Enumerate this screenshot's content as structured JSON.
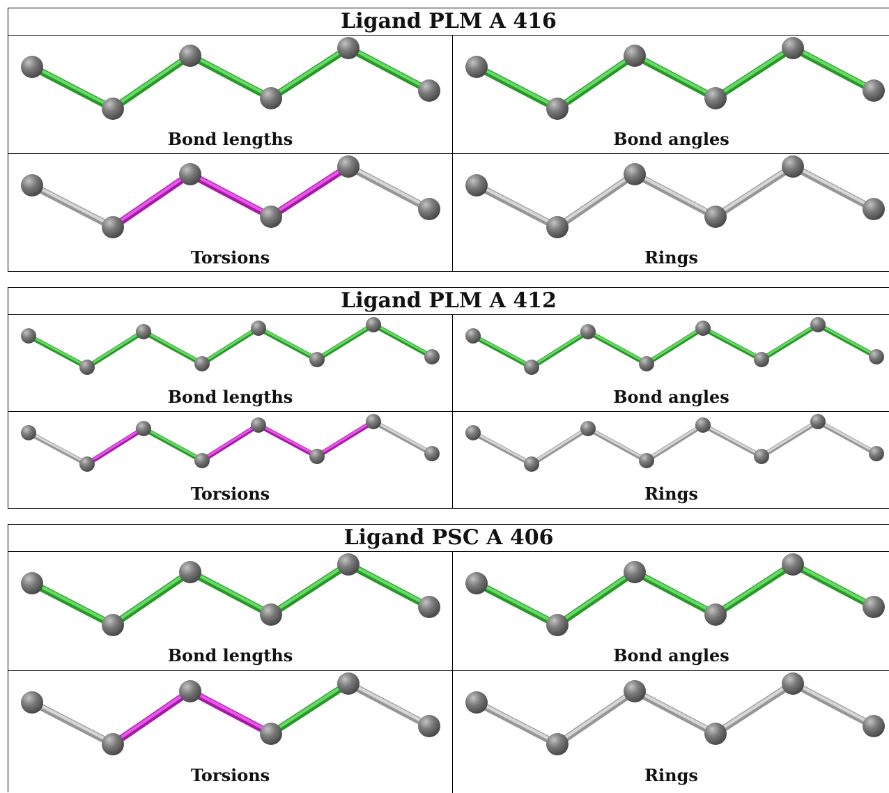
{
  "ligands": [
    {
      "title": "Ligand PLM A 416",
      "panels": [
        {
          "caption": "Bond lengths",
          "bonds": [
            "green",
            "green",
            "green",
            "green",
            "green"
          ]
        },
        {
          "caption": "Bond angles",
          "bonds": [
            "green",
            "green",
            "green",
            "green",
            "green"
          ]
        },
        {
          "caption": "Torsions",
          "bonds": [
            "grey",
            "magenta",
            "magenta",
            "magenta",
            "grey"
          ]
        },
        {
          "caption": "Rings",
          "bonds": [
            "grey",
            "grey",
            "grey",
            "grey",
            "grey"
          ]
        }
      ]
    },
    {
      "title": "Ligand PLM A 412",
      "panels": [
        {
          "caption": "Bond lengths",
          "bonds": [
            "green",
            "green",
            "green",
            "green",
            "green",
            "green",
            "green"
          ]
        },
        {
          "caption": "Bond angles",
          "bonds": [
            "green",
            "green",
            "green",
            "green",
            "green",
            "green",
            "green"
          ]
        },
        {
          "caption": "Torsions",
          "bonds": [
            "grey",
            "magenta",
            "green",
            "magenta",
            "magenta",
            "magenta",
            "grey"
          ]
        },
        {
          "caption": "Rings",
          "bonds": [
            "grey",
            "grey",
            "grey",
            "grey",
            "grey",
            "grey",
            "grey"
          ]
        }
      ]
    },
    {
      "title": "Ligand PSC A 406",
      "panels": [
        {
          "caption": "Bond lengths",
          "bonds": [
            "green",
            "green",
            "green",
            "green",
            "green"
          ]
        },
        {
          "caption": "Bond angles",
          "bonds": [
            "green",
            "green",
            "green",
            "green",
            "green"
          ]
        },
        {
          "caption": "Torsions",
          "bonds": [
            "grey",
            "magenta",
            "magenta",
            "green",
            "grey"
          ]
        },
        {
          "caption": "Rings",
          "bonds": [
            "grey",
            "grey",
            "grey",
            "grey",
            "grey"
          ]
        }
      ]
    }
  ],
  "colors": {
    "green": "#33cc33",
    "magenta": "#e020e0",
    "grey": "#c8c8c8",
    "atom": "#7a7a7a"
  }
}
